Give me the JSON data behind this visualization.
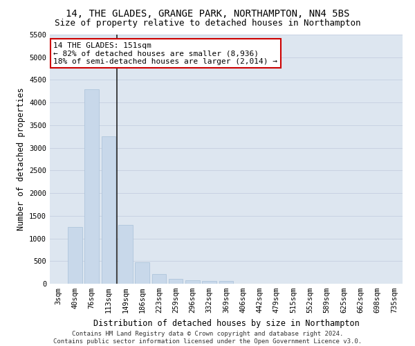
{
  "title1": "14, THE GLADES, GRANGE PARK, NORTHAMPTON, NN4 5BS",
  "title2": "Size of property relative to detached houses in Northampton",
  "xlabel": "Distribution of detached houses by size in Northampton",
  "ylabel": "Number of detached properties",
  "annotation_line1": "14 THE GLADES: 151sqm",
  "annotation_line2": "← 82% of detached houses are smaller (8,936)",
  "annotation_line3": "18% of semi-detached houses are larger (2,014) →",
  "footer1": "Contains HM Land Registry data © Crown copyright and database right 2024.",
  "footer2": "Contains public sector information licensed under the Open Government Licence v3.0.",
  "categories": [
    "3sqm",
    "40sqm",
    "76sqm",
    "113sqm",
    "149sqm",
    "186sqm",
    "223sqm",
    "259sqm",
    "296sqm",
    "332sqm",
    "369sqm",
    "406sqm",
    "442sqm",
    "479sqm",
    "515sqm",
    "552sqm",
    "589sqm",
    "625sqm",
    "662sqm",
    "698sqm",
    "735sqm"
  ],
  "values": [
    0,
    1250,
    4300,
    3250,
    1300,
    480,
    220,
    100,
    80,
    60,
    55,
    0,
    0,
    0,
    0,
    0,
    0,
    0,
    0,
    0,
    0
  ],
  "bar_color": "#c8d8ea",
  "bar_edge_color": "#a8c0d8",
  "marker_color": "#222222",
  "ylim": [
    0,
    5500
  ],
  "yticks": [
    0,
    500,
    1000,
    1500,
    2000,
    2500,
    3000,
    3500,
    4000,
    4500,
    5000,
    5500
  ],
  "grid_color": "#c5cfe0",
  "bg_color": "#dde6f0",
  "annotation_box_color": "#cc0000",
  "title1_fontsize": 10,
  "title2_fontsize": 9,
  "axis_label_fontsize": 8.5,
  "tick_fontsize": 7.5,
  "annotation_fontsize": 8,
  "footer_fontsize": 6.5
}
